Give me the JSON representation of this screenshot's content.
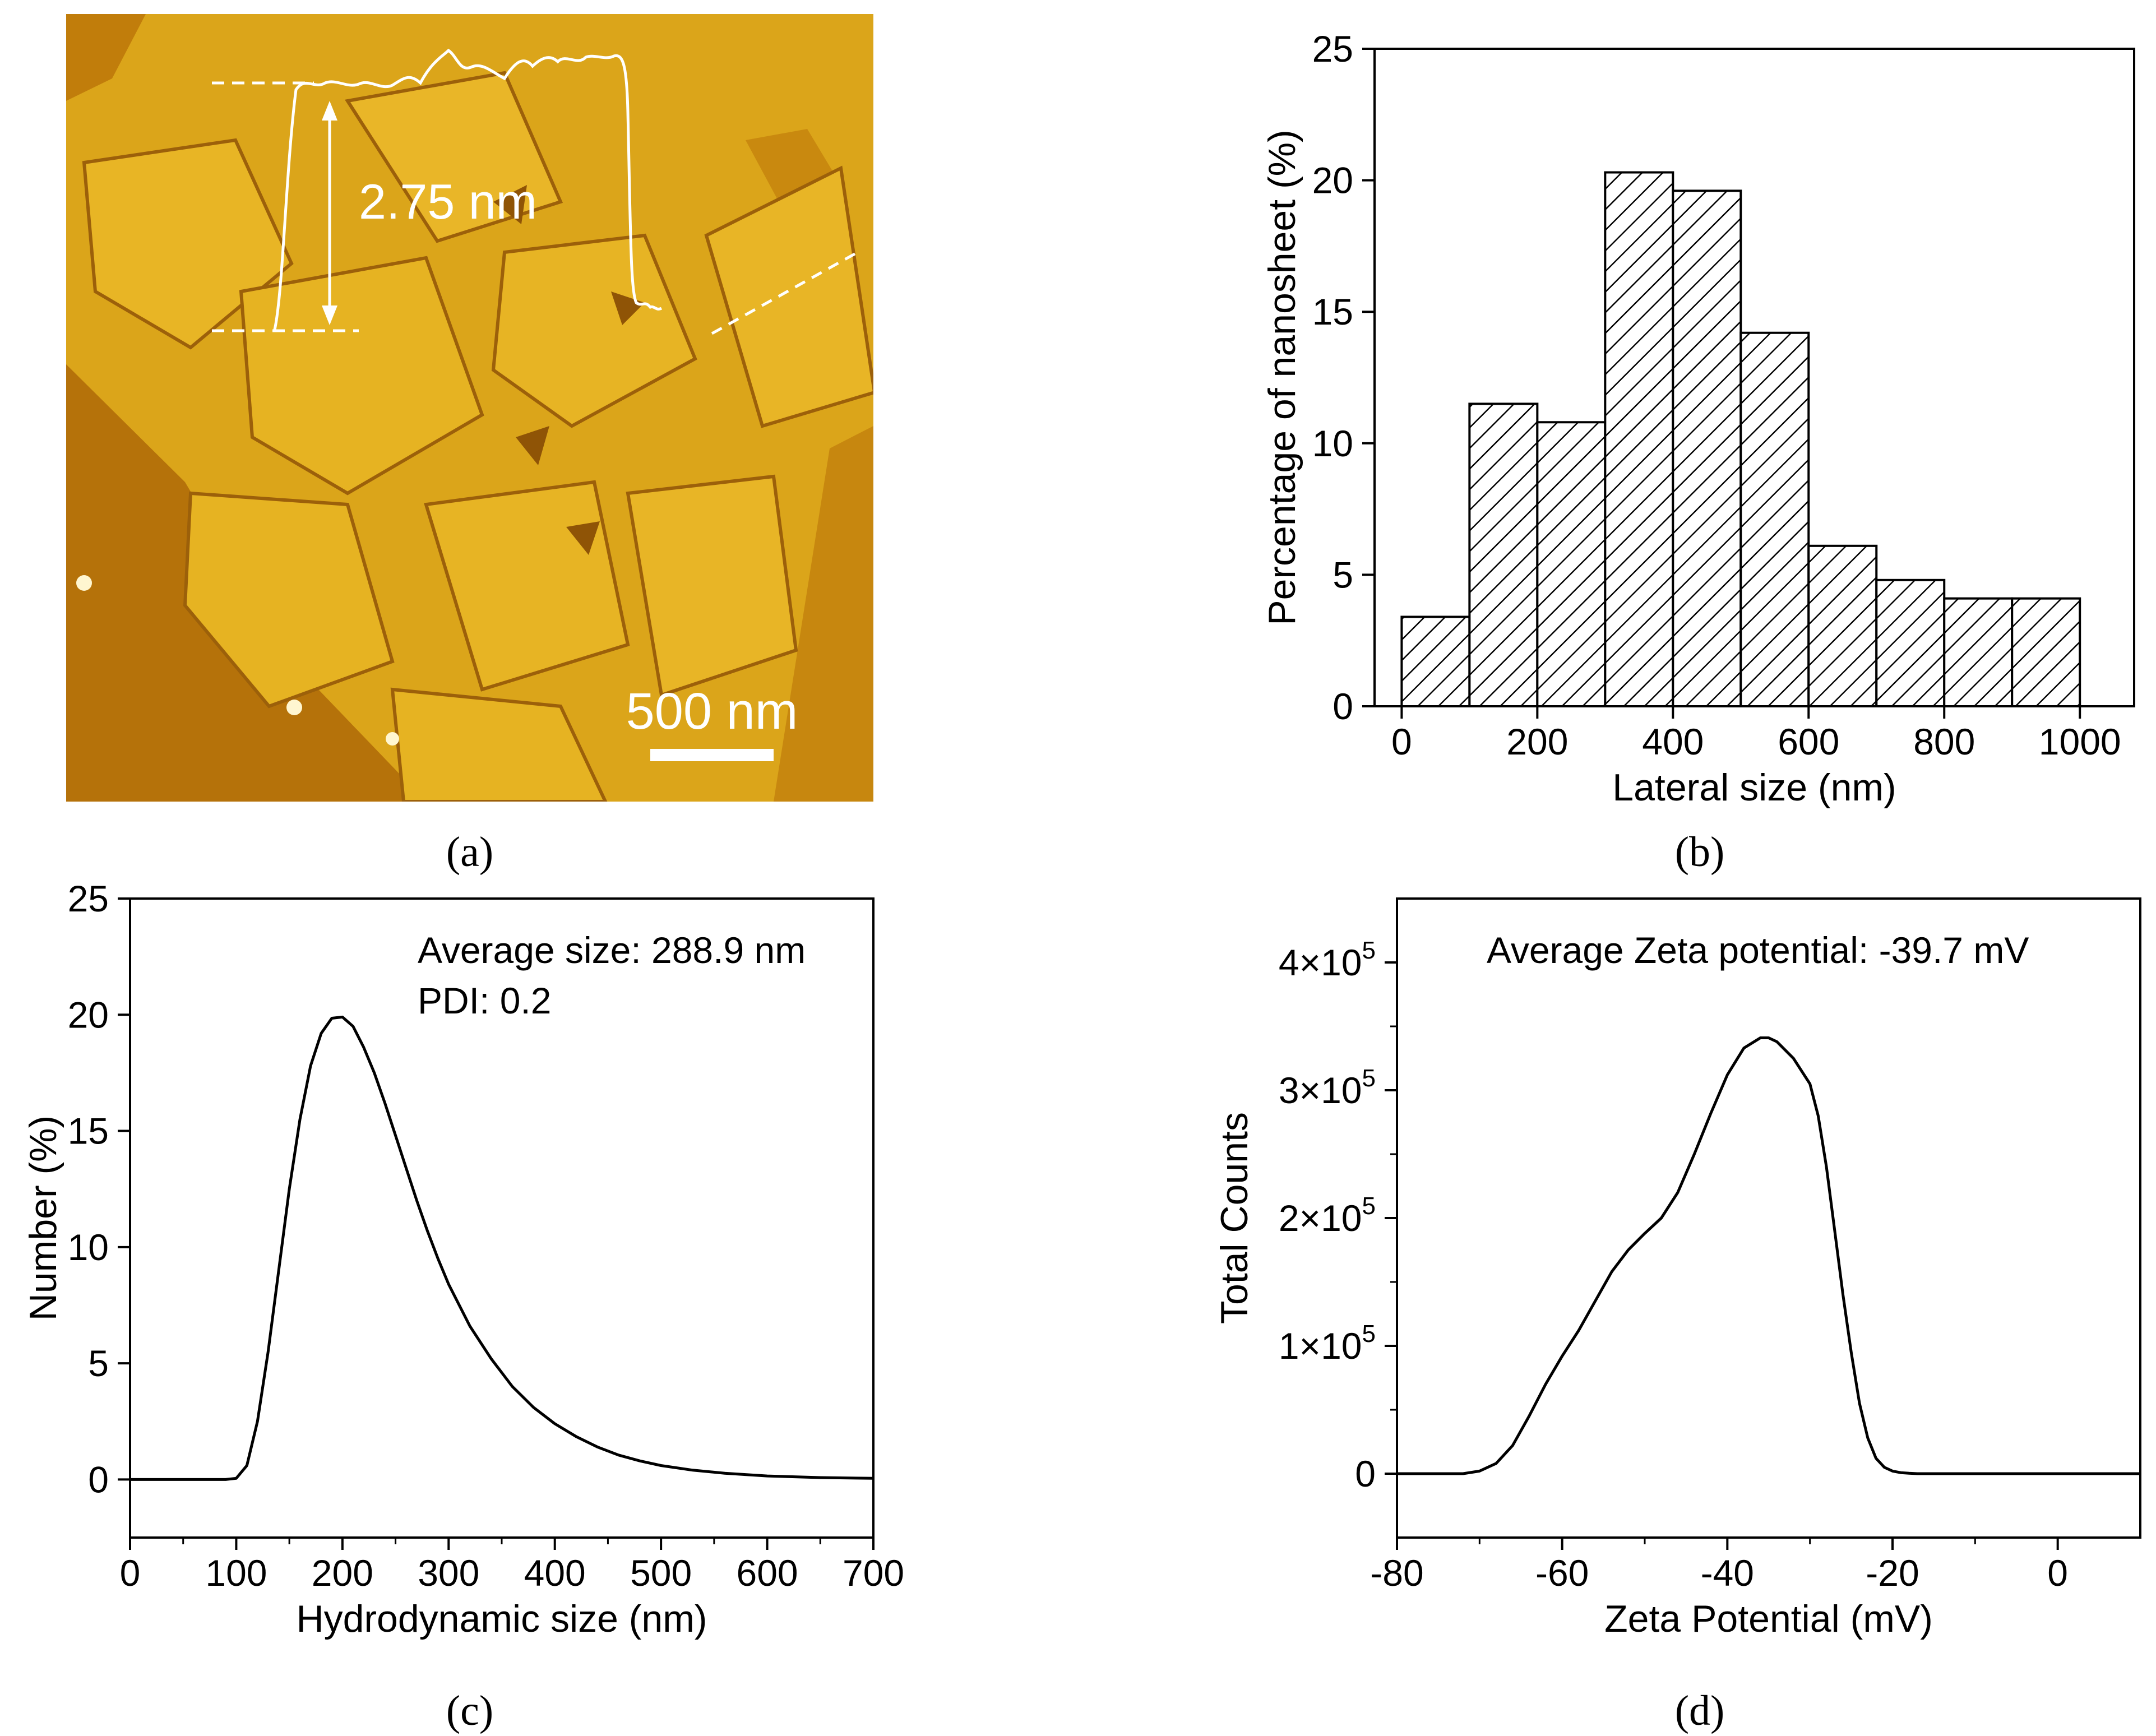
{
  "panel_labels": {
    "a": "(a)",
    "b": "(b)",
    "c": "(c)",
    "d": "(d)"
  },
  "afm_image": {
    "step_height_label": "2.75 nm",
    "scale_bar_label": "500 nm"
  },
  "chart_data": [
    {
      "id": "b",
      "type": "bar",
      "title": "",
      "xlabel": "Lateral size (nm)",
      "ylabel": "Percentage of nanosheet (%)",
      "bin_edges": [
        0,
        100,
        200,
        300,
        400,
        500,
        600,
        700,
        800,
        900,
        1000
      ],
      "values": [
        3.4,
        11.5,
        10.8,
        20.3,
        19.6,
        14.2,
        6.1,
        4.8,
        4.1,
        4.1
      ],
      "xlim": [
        -40,
        1080
      ],
      "ylim": [
        0,
        25
      ],
      "xticks": [
        0,
        200,
        400,
        600,
        800,
        1000
      ],
      "xtick_labels": [
        "0",
        "200",
        "400",
        "600",
        "800",
        "1000"
      ],
      "yticks": [
        0,
        5,
        10,
        15,
        20,
        25
      ],
      "ytick_labels": [
        "0",
        "5",
        "10",
        "15",
        "20",
        "25"
      ],
      "bar_fill": "diagonal hatch",
      "grid": false
    },
    {
      "id": "c",
      "type": "line",
      "title": "",
      "xlabel": "Hydrodynamic size (nm)",
      "ylabel": "Number (%)",
      "xlim": [
        0,
        700
      ],
      "ylim": [
        -2.5,
        25
      ],
      "xticks": [
        0,
        100,
        200,
        300,
        400,
        500,
        600,
        700
      ],
      "xtick_labels": [
        "0",
        "100",
        "200",
        "300",
        "400",
        "500",
        "600",
        "700"
      ],
      "yticks": [
        0,
        5,
        10,
        15,
        20,
        25
      ],
      "ytick_labels": [
        "0",
        "5",
        "10",
        "15",
        "20",
        "25"
      ],
      "annotations": [
        "Average size: 288.9 nm",
        "PDI: 0.2"
      ],
      "series": [
        {
          "name": "Number distribution",
          "x": [
            0,
            90,
            100,
            110,
            120,
            130,
            140,
            150,
            160,
            170,
            180,
            190,
            200,
            210,
            220,
            230,
            240,
            250,
            260,
            270,
            280,
            290,
            300,
            320,
            340,
            360,
            380,
            400,
            420,
            440,
            460,
            480,
            500,
            530,
            560,
            600,
            650,
            700
          ],
          "y": [
            0,
            0,
            0.05,
            0.6,
            2.5,
            5.5,
            9.0,
            12.5,
            15.5,
            17.8,
            19.2,
            19.85,
            19.9,
            19.5,
            18.6,
            17.5,
            16.2,
            14.8,
            13.4,
            12.0,
            10.7,
            9.5,
            8.4,
            6.6,
            5.2,
            4.0,
            3.1,
            2.4,
            1.85,
            1.4,
            1.05,
            0.8,
            0.6,
            0.4,
            0.27,
            0.15,
            0.08,
            0.05
          ]
        }
      ],
      "grid": false
    },
    {
      "id": "d",
      "type": "line",
      "title": "",
      "xlabel": "Zeta Potential (mV)",
      "ylabel": "Total Counts",
      "xlim": [
        -80,
        10
      ],
      "ylim": [
        -50000,
        450000
      ],
      "xticks": [
        -80,
        -60,
        -40,
        -20,
        0
      ],
      "xtick_labels": [
        "-80",
        "-60",
        "-40",
        "-20",
        "0"
      ],
      "yticks": [
        0,
        100000,
        200000,
        300000,
        400000
      ],
      "ytick_labels": [
        "0",
        "1×10",
        "2×10",
        "3×10",
        "4×10"
      ],
      "ytick_exponent": "5",
      "annotations": [
        "Average Zeta potential: -39.7 mV"
      ],
      "series": [
        {
          "name": "Zeta potential distribution",
          "x": [
            -80,
            -72,
            -70,
            -68,
            -66,
            -64,
            -62,
            -60,
            -58,
            -56,
            -54,
            -52,
            -50,
            -48,
            -46,
            -44,
            -42,
            -40,
            -38,
            -36,
            -35,
            -34,
            -32,
            -30,
            -29,
            -28,
            -27,
            -26,
            -25,
            -24,
            -23,
            -22,
            -21,
            -20,
            -19,
            -18,
            -17,
            -10,
            0,
            10
          ],
          "y": [
            0,
            0,
            2000,
            8000,
            22000,
            45000,
            70000,
            92000,
            112000,
            135000,
            158000,
            175000,
            188000,
            200000,
            220000,
            250000,
            282000,
            312000,
            333000,
            341000,
            341000,
            338000,
            325000,
            305000,
            280000,
            240000,
            190000,
            140000,
            95000,
            55000,
            28000,
            12000,
            5000,
            2000,
            800,
            300,
            0,
            0,
            0,
            0
          ]
        }
      ],
      "grid": false
    }
  ]
}
